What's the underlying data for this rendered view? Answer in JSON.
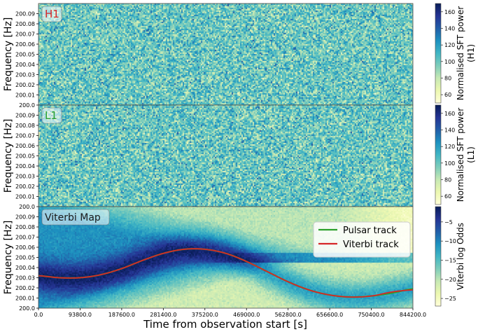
{
  "xlabel": "Time from observation start [s]",
  "xticks": [
    "0.0",
    "93800.0",
    "187600.0",
    "281400.0",
    "375200.0",
    "469000.0",
    "562800.0",
    "656600.0",
    "750400.0",
    "844200.0"
  ],
  "yticks": [
    "200.0",
    "200.01",
    "200.02",
    "200.03",
    "200.04",
    "200.05",
    "200.06",
    "200.07",
    "200.08",
    "200.09"
  ],
  "ylabel": "Frequency [Hz]",
  "chart_data": [
    {
      "type": "heatmap",
      "panel_label": "H1",
      "panel_label_color": "#d62728",
      "colorbar_label": [
        "Normalised SFT power",
        "(H1)"
      ],
      "colorbar_ticks": [
        60,
        80,
        100,
        120,
        140,
        160
      ],
      "colorbar_range": [
        50,
        170
      ],
      "x_range": [
        0,
        844200
      ],
      "y_range": [
        200.0,
        200.1
      ],
      "colormap": "YlGnBu"
    },
    {
      "type": "heatmap",
      "panel_label": "L1",
      "panel_label_color": "#2ca02c",
      "colorbar_label": [
        "Normalised SFT power",
        "(L1)"
      ],
      "colorbar_ticks": [
        60,
        80,
        100,
        120,
        140,
        160
      ],
      "colorbar_range": [
        50,
        170
      ],
      "x_range": [
        0,
        844200
      ],
      "y_range": [
        200.0,
        200.1
      ],
      "colormap": "YlGnBu"
    },
    {
      "type": "heatmap",
      "panel_label": "Viterbi Map",
      "panel_label_color": "#1a1a1a",
      "colorbar_label": [
        "Viterbi log Odds"
      ],
      "colorbar_ticks": [
        -5,
        -10,
        -15,
        -20,
        -25
      ],
      "colorbar_range": [
        -27,
        -1
      ],
      "x_range": [
        0,
        844200
      ],
      "y_range": [
        200.0,
        200.1
      ],
      "colormap": "YlGnBu",
      "legend_position": "top-right",
      "series": [
        {
          "name": "Pulsar track",
          "color": "#2ca02c",
          "x": [
            0,
            46900,
            93800,
            140700,
            187600,
            234500,
            281400,
            328300,
            375200,
            422100,
            469000,
            515900,
            562800,
            609700,
            656600,
            703500,
            750400,
            797300,
            844200
          ],
          "y": [
            200.032,
            200.03,
            200.03,
            200.033,
            200.039,
            200.047,
            200.054,
            200.058,
            200.058,
            200.054,
            200.046,
            200.036,
            200.026,
            200.018,
            200.013,
            200.011,
            200.012,
            200.015,
            200.019
          ]
        },
        {
          "name": "Viterbi track",
          "color": "#d62728",
          "x": [
            0,
            46900,
            93800,
            140700,
            187600,
            234500,
            281400,
            328300,
            375200,
            422100,
            469000,
            515900,
            562800,
            609700,
            656600,
            703500,
            750400,
            797300,
            844200
          ],
          "y": [
            200.032,
            200.03,
            200.03,
            200.033,
            200.039,
            200.047,
            200.054,
            200.058,
            200.058,
            200.054,
            200.046,
            200.036,
            200.026,
            200.018,
            200.013,
            200.011,
            200.012,
            200.016,
            200.018
          ]
        }
      ]
    }
  ]
}
